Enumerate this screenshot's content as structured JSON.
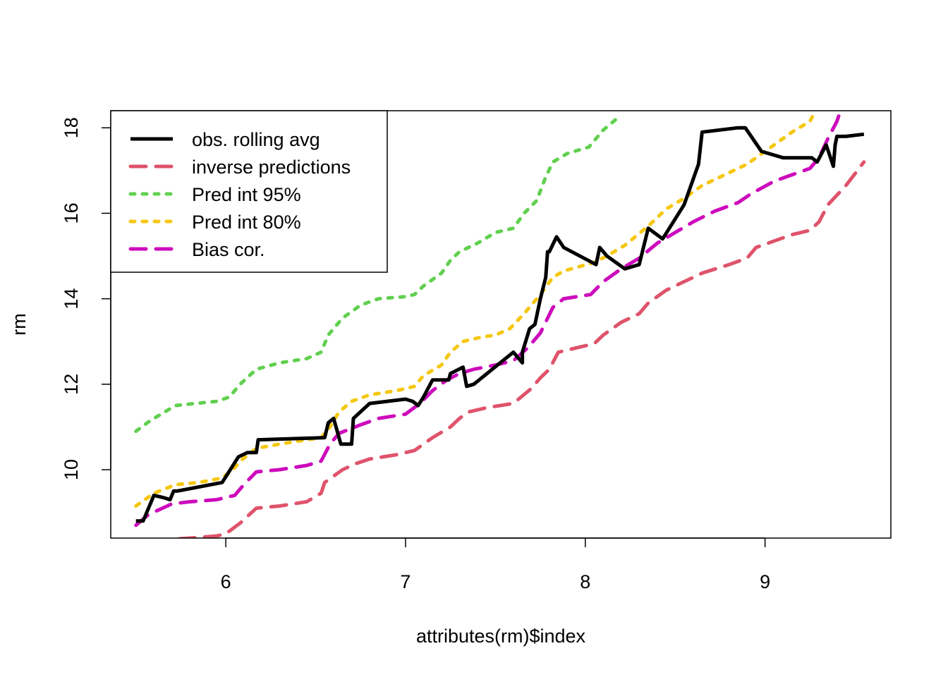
{
  "chart_data": {
    "type": "line",
    "title": "",
    "xlabel": "attributes(rm)$index",
    "ylabel": "rm",
    "xlim": [
      5.36,
      9.7
    ],
    "ylim": [
      8.4,
      18.4
    ],
    "xticks": [
      6,
      7,
      8,
      9
    ],
    "yticks": [
      10,
      12,
      14,
      16,
      18
    ],
    "legend_position": "top-left",
    "series": [
      {
        "name": "obs. rolling avg",
        "color": "#000000",
        "dash": "solid",
        "x": [
          5.5,
          5.54,
          5.6,
          5.65,
          5.69,
          5.71,
          5.73,
          5.98,
          6.07,
          6.12,
          6.17,
          6.18,
          6.55,
          6.57,
          6.6,
          6.64,
          6.7,
          6.71,
          6.8,
          7.0,
          7.04,
          7.07,
          7.1,
          7.15,
          7.2,
          7.24,
          7.25,
          7.32,
          7.34,
          7.38,
          7.6,
          7.65,
          7.65,
          7.69,
          7.72,
          7.75,
          7.78,
          7.79,
          7.8,
          7.84,
          7.88,
          8.06,
          8.08,
          8.12,
          8.22,
          8.3,
          8.35,
          8.43,
          8.55,
          8.63,
          8.65,
          8.85,
          8.89,
          8.98,
          9.1,
          9.26,
          9.29,
          9.34,
          9.38,
          9.39,
          9.4,
          9.45,
          9.55
        ],
        "y": [
          8.8,
          8.8,
          9.4,
          9.35,
          9.3,
          9.5,
          9.5,
          9.7,
          10.3,
          10.4,
          10.4,
          10.7,
          10.75,
          11.1,
          11.2,
          10.6,
          10.6,
          11.2,
          11.55,
          11.65,
          11.6,
          11.5,
          11.7,
          12.1,
          12.1,
          12.1,
          12.25,
          12.4,
          11.95,
          12.0,
          12.75,
          12.5,
          12.75,
          13.3,
          13.4,
          14.0,
          14.5,
          15.1,
          15.1,
          15.45,
          15.2,
          14.8,
          15.2,
          15.0,
          14.7,
          14.8,
          15.65,
          15.4,
          16.2,
          17.15,
          17.9,
          18.0,
          18.0,
          17.45,
          17.3,
          17.3,
          17.2,
          17.6,
          17.1,
          17.6,
          17.8,
          17.8,
          17.85
        ]
      },
      {
        "name": "inverse predictions",
        "color": "#DF536B",
        "dash": "dashed",
        "x": [
          5.6,
          5.63,
          5.8,
          5.95,
          6.0,
          6.08,
          6.17,
          6.3,
          6.45,
          6.53,
          6.55,
          6.65,
          6.73,
          6.8,
          6.95,
          7.05,
          7.15,
          7.25,
          7.3,
          7.35,
          7.45,
          7.6,
          7.7,
          7.75,
          7.8,
          7.85,
          7.95,
          8.05,
          8.1,
          8.2,
          8.3,
          8.35,
          8.45,
          8.55,
          8.65,
          8.8,
          8.9,
          8.95,
          9.05,
          9.15,
          9.25,
          9.3,
          9.35,
          9.45,
          9.55
        ],
        "y": [
          8.35,
          8.35,
          8.4,
          8.45,
          8.5,
          8.75,
          9.1,
          9.15,
          9.25,
          9.45,
          9.7,
          10.0,
          10.15,
          10.25,
          10.35,
          10.45,
          10.75,
          11.0,
          11.2,
          11.35,
          11.45,
          11.55,
          11.9,
          12.15,
          12.35,
          12.75,
          12.85,
          12.95,
          13.15,
          13.45,
          13.65,
          13.9,
          14.2,
          14.4,
          14.6,
          14.8,
          14.95,
          15.2,
          15.35,
          15.5,
          15.6,
          15.8,
          16.2,
          16.65,
          17.2
        ]
      },
      {
        "name": "Pred int 95%",
        "color": "#61D04F",
        "dash": "dotted",
        "x": [
          5.5,
          5.58,
          5.72,
          5.83,
          5.95,
          6.02,
          6.08,
          6.17,
          6.3,
          6.45,
          6.53,
          6.57,
          6.65,
          6.75,
          6.85,
          7.0,
          7.05,
          7.1,
          7.2,
          7.25,
          7.3,
          7.4,
          7.5,
          7.6,
          7.66,
          7.73,
          7.78,
          7.82,
          7.9,
          8.02,
          8.1,
          8.2
        ],
        "y": [
          10.9,
          11.15,
          11.5,
          11.55,
          11.6,
          11.7,
          12.0,
          12.35,
          12.5,
          12.6,
          12.75,
          13.15,
          13.55,
          13.85,
          14.0,
          14.05,
          14.1,
          14.3,
          14.6,
          14.9,
          15.1,
          15.3,
          15.55,
          15.65,
          16.0,
          16.3,
          16.85,
          17.2,
          17.4,
          17.55,
          17.95,
          18.3
        ]
      },
      {
        "name": "Pred int 80%",
        "color": "#F5C710",
        "dash": "dotted",
        "x": [
          5.5,
          5.6,
          5.72,
          5.85,
          5.97,
          6.03,
          6.08,
          6.17,
          6.3,
          6.45,
          6.53,
          6.58,
          6.63,
          6.7,
          6.8,
          6.95,
          7.05,
          7.1,
          7.2,
          7.25,
          7.32,
          7.42,
          7.5,
          7.58,
          7.66,
          7.75,
          7.82,
          7.88,
          8.05,
          8.12,
          8.22,
          8.35,
          8.45,
          8.55,
          8.65,
          8.8,
          8.9,
          9.05,
          9.15,
          9.25,
          9.28
        ],
        "y": [
          9.15,
          9.45,
          9.65,
          9.7,
          9.8,
          9.95,
          10.2,
          10.5,
          10.6,
          10.7,
          10.75,
          11.0,
          11.35,
          11.6,
          11.75,
          11.85,
          11.95,
          12.2,
          12.45,
          12.75,
          13.0,
          13.1,
          13.15,
          13.3,
          13.65,
          14.1,
          14.5,
          14.65,
          14.85,
          15.0,
          15.25,
          15.7,
          16.1,
          16.35,
          16.65,
          16.95,
          17.15,
          17.6,
          17.9,
          18.15,
          18.4
        ]
      },
      {
        "name": "Bias cor.",
        "color": "#CD0BBC",
        "dash": "dashed",
        "x": [
          5.5,
          5.57,
          5.7,
          5.8,
          5.95,
          6.05,
          6.1,
          6.17,
          6.3,
          6.45,
          6.53,
          6.58,
          6.63,
          6.75,
          6.85,
          7.0,
          7.08,
          7.15,
          7.23,
          7.3,
          7.38,
          7.5,
          7.6,
          7.68,
          7.75,
          7.82,
          7.88,
          8.03,
          8.1,
          8.2,
          8.3,
          8.4,
          8.5,
          8.6,
          8.72,
          8.85,
          8.92,
          9.05,
          9.15,
          9.25,
          9.3,
          9.35,
          9.4,
          9.42
        ],
        "y": [
          8.7,
          8.95,
          9.2,
          9.25,
          9.3,
          9.4,
          9.65,
          9.95,
          10.0,
          10.1,
          10.2,
          10.6,
          10.85,
          11.05,
          11.2,
          11.3,
          11.55,
          11.85,
          12.1,
          12.25,
          12.35,
          12.45,
          12.55,
          12.85,
          13.2,
          13.8,
          14.0,
          14.1,
          14.4,
          14.7,
          14.95,
          15.3,
          15.55,
          15.8,
          16.05,
          16.25,
          16.45,
          16.75,
          16.9,
          17.05,
          17.3,
          17.75,
          18.15,
          18.4
        ]
      }
    ]
  }
}
